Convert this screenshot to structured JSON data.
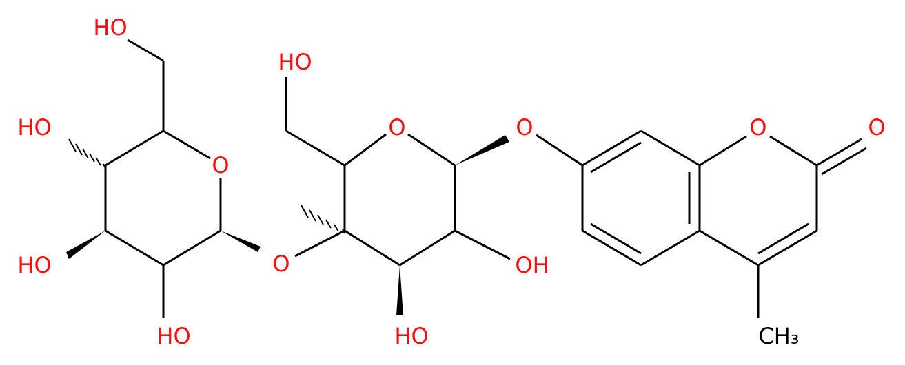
{
  "atoms": [
    {
      "label": "HO"
    },
    {
      "label": "HO"
    },
    {
      "label": "O"
    },
    {
      "label": "HO"
    },
    {
      "label": "HO"
    },
    {
      "label": "O"
    },
    {
      "label": "HO"
    },
    {
      "label": "O"
    },
    {
      "label": "O"
    },
    {
      "label": "OH"
    },
    {
      "label": "HO"
    },
    {
      "label": "O"
    },
    {
      "label": "O"
    },
    {
      "label": "CH₃"
    }
  ]
}
